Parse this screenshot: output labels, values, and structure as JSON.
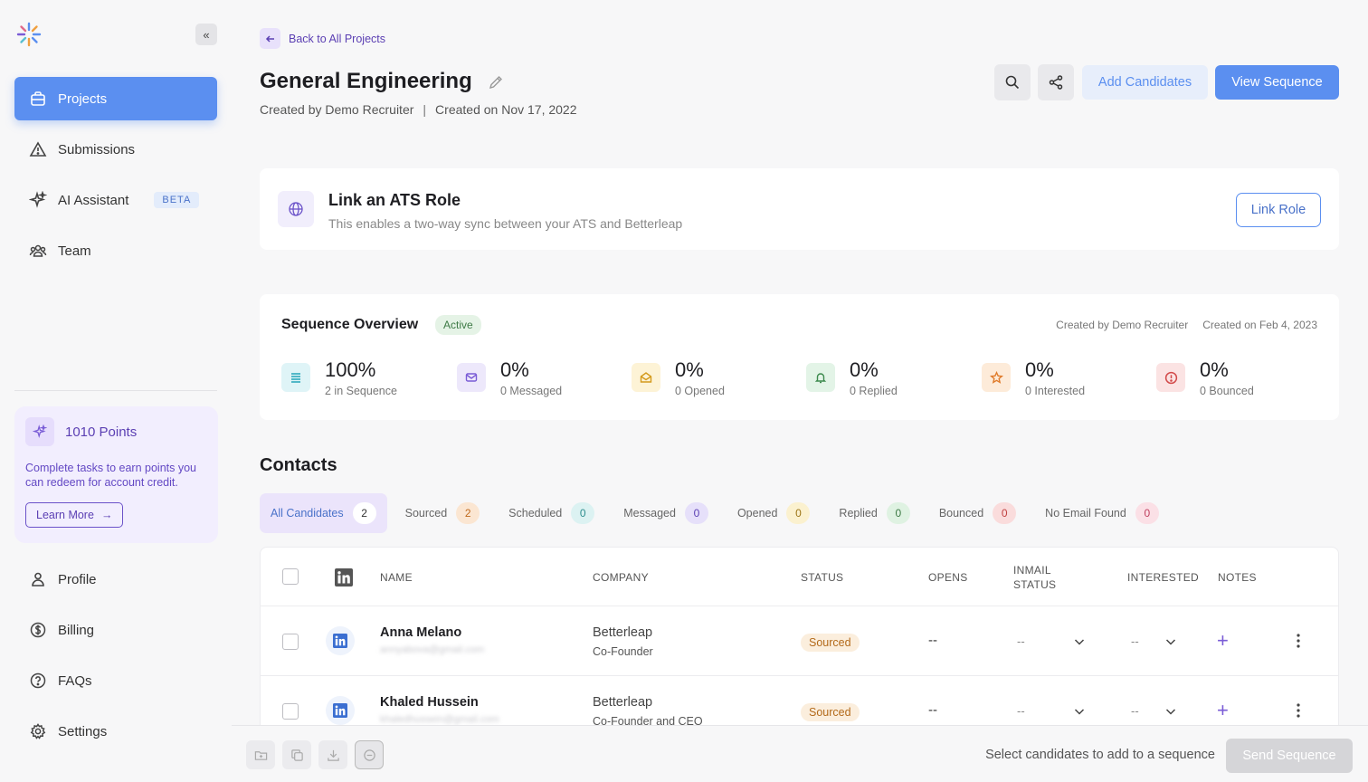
{
  "sidebar": {
    "logo": "betterleap-logo",
    "collapse_label": "«",
    "nav_top": [
      {
        "label": "Projects",
        "icon": "briefcase-icon",
        "active": true
      },
      {
        "label": "Submissions",
        "icon": "warning-triangle-icon"
      },
      {
        "label": "AI Assistant",
        "icon": "sparkle-icon",
        "badge": "BETA"
      },
      {
        "label": "Team",
        "icon": "team-icon"
      }
    ],
    "points": {
      "title": "1010 Points",
      "text": "Complete tasks to earn points you can redeem for account credit.",
      "button": "Learn More",
      "button_arrow": "→"
    },
    "nav_bottom": [
      {
        "label": "Profile",
        "icon": "user-icon"
      },
      {
        "label": "Billing",
        "icon": "dollar-icon"
      },
      {
        "label": "FAQs",
        "icon": "help-icon"
      },
      {
        "label": "Settings",
        "icon": "gear-icon"
      }
    ]
  },
  "header": {
    "back_label": "Back to All Projects",
    "title": "General Engineering",
    "created_by": "Created by Demo Recruiter",
    "separator": "|",
    "created_on": "Created on Nov 17, 2022",
    "add_candidates": "Add Candidates",
    "view_sequence": "View Sequence"
  },
  "ats": {
    "title": "Link an ATS Role",
    "subtitle": "This enables a two-way sync between your ATS and Betterleap",
    "button": "Link Role"
  },
  "sequence": {
    "title": "Sequence Overview",
    "status": "Active",
    "created_by": "Created by Demo Recruiter",
    "created_on": "Created on Feb 4, 2023",
    "stats": [
      {
        "pct": "100%",
        "label": "2 in Sequence",
        "icon": "list-icon",
        "bg": "#dff4f7",
        "fg": "#2fa9bd"
      },
      {
        "pct": "0%",
        "label": "0 Messaged",
        "icon": "mail-icon",
        "bg": "#ede8fb",
        "fg": "#7a5cd6"
      },
      {
        "pct": "0%",
        "label": "0 Opened",
        "icon": "mail-open-icon",
        "bg": "#fdf3d6",
        "fg": "#d49a1c"
      },
      {
        "pct": "0%",
        "label": "0 Replied",
        "icon": "bell-icon",
        "bg": "#e3f4e7",
        "fg": "#3d8a4e"
      },
      {
        "pct": "0%",
        "label": "0 Interested",
        "icon": "star-icon",
        "bg": "#fdebd9",
        "fg": "#e07b2a"
      },
      {
        "pct": "0%",
        "label": "0 Bounced",
        "icon": "alert-circle-icon",
        "bg": "#fbe3e3",
        "fg": "#d24a4a"
      }
    ]
  },
  "contacts": {
    "title": "Contacts",
    "tabs": [
      {
        "label": "All Candidates",
        "count": "2",
        "bg": "#ffffff",
        "fg": "#333333"
      },
      {
        "label": "Sourced",
        "count": "2",
        "bg": "#fbe6d2",
        "fg": "#c06a1e"
      },
      {
        "label": "Scheduled",
        "count": "0",
        "bg": "#dcf2f2",
        "fg": "#2f8f8f"
      },
      {
        "label": "Messaged",
        "count": "0",
        "bg": "#e6e0fa",
        "fg": "#5b3fb3"
      },
      {
        "label": "Opened",
        "count": "0",
        "bg": "#fbf1cf",
        "fg": "#9b7415"
      },
      {
        "label": "Replied",
        "count": "0",
        "bg": "#dff2e2",
        "fg": "#3d7a45"
      },
      {
        "label": "Bounced",
        "count": "0",
        "bg": "#fadcdc",
        "fg": "#c04040"
      },
      {
        "label": "No Email Found",
        "count": "0",
        "bg": "#fbe0e6",
        "fg": "#c04060"
      }
    ],
    "columns": {
      "name": "NAME",
      "company": "COMPANY",
      "status": "STATUS",
      "opens": "OPENS",
      "inmail_1": "INMAIL",
      "inmail_2": "STATUS",
      "interested": "INTERESTED",
      "notes": "NOTES"
    },
    "rows": [
      {
        "name": "Anna Melano",
        "email": "annyabova@gmail.com",
        "company": "Betterleap",
        "title": "Co-Founder",
        "status": "Sourced",
        "opens": "--",
        "inmail": "--",
        "interested": "--"
      },
      {
        "name": "Khaled Hussein",
        "email": "khaledhussein@gmail.com",
        "company": "Betterleap",
        "title": "Co-Founder and CEO",
        "status": "Sourced",
        "opens": "--",
        "inmail": "--",
        "interested": "--"
      }
    ]
  },
  "bottom": {
    "hint": "Select candidates to add to a sequence",
    "send": "Send Sequence"
  }
}
